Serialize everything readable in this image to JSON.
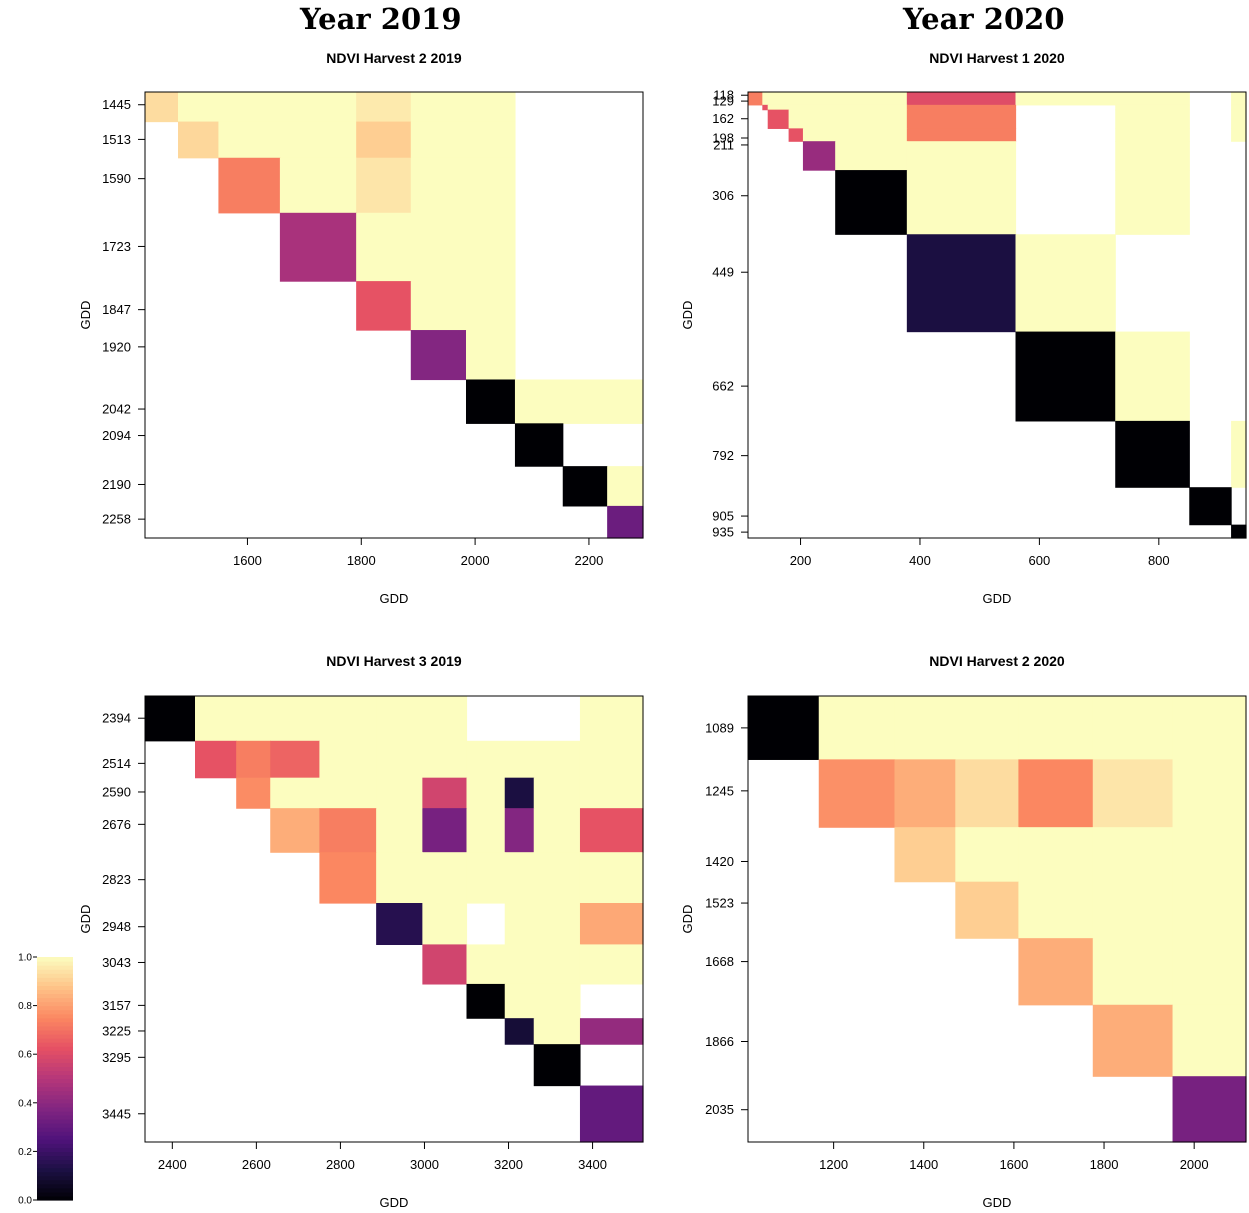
{
  "column_titles": [
    "Year 2019",
    "Year 2020"
  ],
  "colorbar": {
    "ticks": [
      "0.0",
      "0.2",
      "0.4",
      "0.6",
      "0.8",
      "1.0"
    ],
    "palette": [
      "#000004",
      "#1c1044",
      "#4f127b",
      "#812581",
      "#b5367a",
      "#e55064",
      "#fb8761",
      "#fec287",
      "#fcfdbf"
    ]
  },
  "chart_data": [
    {
      "type": "heatmap",
      "title": "NDVI Harvest 2 2019",
      "xlabel": "GDD",
      "ylabel": "GDD",
      "xlim": [
        1420,
        2295
      ],
      "ylim": [
        1420,
        2295
      ],
      "x_ticks": [
        "1600",
        "1800",
        "2000",
        "2200"
      ],
      "y_ticks": [
        "1445",
        "1513",
        "1590",
        "1723",
        "1847",
        "1920",
        "2042",
        "2094",
        "2190",
        "2258"
      ],
      "bounds": [
        1420,
        1478,
        1549,
        1657,
        1791,
        1887,
        1984,
        2070,
        2154,
        2232,
        2295
      ],
      "values": [
        [
          0.93,
          1.0,
          1.0,
          1.0,
          0.96,
          1.0,
          1.0,
          null,
          null,
          null
        ],
        [
          null,
          0.92,
          1.0,
          1.0,
          0.9,
          1.0,
          1.0,
          null,
          null,
          null
        ],
        [
          null,
          null,
          0.73,
          1.0,
          0.95,
          1.0,
          1.0,
          null,
          null,
          null
        ],
        [
          null,
          null,
          null,
          0.47,
          1.0,
          1.0,
          1.0,
          null,
          null,
          null
        ],
        [
          null,
          null,
          null,
          null,
          0.63,
          1.0,
          1.0,
          null,
          null,
          null
        ],
        [
          null,
          null,
          null,
          null,
          null,
          0.38,
          1.0,
          null,
          null,
          null
        ],
        [
          null,
          null,
          null,
          null,
          null,
          null,
          0.0,
          1.0,
          1.0,
          1.0
        ],
        [
          null,
          null,
          null,
          null,
          null,
          null,
          null,
          0.0,
          null,
          null
        ],
        [
          null,
          null,
          null,
          null,
          null,
          null,
          null,
          null,
          0.0,
          1.0
        ],
        [
          null,
          null,
          null,
          null,
          null,
          null,
          null,
          null,
          null,
          0.32
        ]
      ]
    },
    {
      "type": "heatmap",
      "title": "NDVI Harvest 1 2020",
      "xlabel": "GDD",
      "ylabel": "GDD",
      "xlim": [
        112,
        946
      ],
      "ylim": [
        112,
        946
      ],
      "x_ticks": [
        "200",
        "400",
        "600",
        "800"
      ],
      "y_ticks": [
        "118",
        "129",
        "162",
        "198",
        "211",
        "306",
        "449",
        "662",
        "792",
        "905",
        "935"
      ],
      "bounds": [
        112,
        136,
        145,
        180,
        204,
        258,
        378,
        560,
        727,
        851,
        921,
        946
      ],
      "values": [
        [
          0.73,
          1.0,
          1.0,
          1.0,
          1.0,
          1.0,
          0.61,
          1.0,
          1.0,
          null,
          1.0
        ],
        [
          null,
          0.63,
          1.0,
          1.0,
          1.0,
          1.0,
          0.73,
          null,
          1.0,
          null,
          1.0
        ],
        [
          null,
          null,
          0.63,
          1.0,
          1.0,
          1.0,
          0.73,
          null,
          1.0,
          null,
          1.0
        ],
        [
          null,
          null,
          null,
          0.63,
          1.0,
          1.0,
          0.73,
          null,
          1.0,
          null,
          1.0
        ],
        [
          null,
          null,
          null,
          null,
          0.43,
          1.0,
          1.0,
          null,
          1.0,
          null,
          null
        ],
        [
          null,
          null,
          null,
          null,
          null,
          0.0,
          1.0,
          null,
          1.0,
          null,
          null
        ],
        [
          null,
          null,
          null,
          null,
          null,
          null,
          0.12,
          1.0,
          null,
          null,
          null
        ],
        [
          null,
          null,
          null,
          null,
          null,
          null,
          null,
          0.0,
          1.0,
          null,
          null
        ],
        [
          null,
          null,
          null,
          null,
          null,
          null,
          null,
          null,
          0.0,
          null,
          1.0
        ],
        [
          null,
          null,
          null,
          null,
          null,
          null,
          null,
          null,
          null,
          0.0,
          null
        ],
        [
          null,
          null,
          null,
          null,
          null,
          null,
          null,
          null,
          null,
          null,
          0.0
        ]
      ]
    },
    {
      "type": "heatmap",
      "title": "NDVI Harvest 3 2019",
      "xlabel": "GDD",
      "ylabel": "GDD",
      "xlim": [
        2335,
        3520
      ],
      "ylim": [
        2335,
        3520
      ],
      "x_ticks": [
        "2400",
        "2600",
        "2800",
        "3000",
        "3200",
        "3400"
      ],
      "y_ticks": [
        "2394",
        "2514",
        "2590",
        "2676",
        "2823",
        "2948",
        "3043",
        "3157",
        "3225",
        "3295",
        "3445"
      ],
      "bounds": [
        2335,
        2454,
        2552,
        2633,
        2750,
        2885,
        2995,
        3100,
        3191,
        3260,
        3370,
        3520
      ],
      "values": [
        [
          0.0,
          1.0,
          1.0,
          1.0,
          1.0,
          1.0,
          1.0,
          null,
          null,
          null,
          1.0
        ],
        [
          null,
          0.63,
          0.73,
          0.67,
          1.0,
          1.0,
          1.0,
          1.0,
          1.0,
          1.0,
          1.0
        ],
        [
          null,
          null,
          0.76,
          1.0,
          1.0,
          1.0,
          0.57,
          1.0,
          0.12,
          1.0,
          1.0
        ],
        [
          null,
          null,
          null,
          0.83,
          0.73,
          1.0,
          0.35,
          1.0,
          0.38,
          1.0,
          0.63
        ],
        [
          null,
          null,
          null,
          null,
          0.75,
          1.0,
          1.0,
          1.0,
          1.0,
          1.0,
          1.0
        ],
        [
          null,
          null,
          null,
          null,
          null,
          0.15,
          1.0,
          null,
          1.0,
          1.0,
          0.82
        ],
        [
          null,
          null,
          null,
          null,
          null,
          null,
          0.57,
          1.0,
          1.0,
          1.0,
          1.0
        ],
        [
          null,
          null,
          null,
          null,
          null,
          null,
          null,
          0.0,
          1.0,
          1.0,
          null
        ],
        [
          null,
          null,
          null,
          null,
          null,
          null,
          null,
          null,
          0.1,
          1.0,
          0.42
        ],
        [
          null,
          null,
          null,
          null,
          null,
          null,
          null,
          null,
          null,
          0.0,
          null
        ],
        [
          null,
          null,
          null,
          null,
          null,
          null,
          null,
          null,
          null,
          null,
          0.3
        ]
      ]
    },
    {
      "type": "heatmap",
      "title": "NDVI Harvest 2 2020",
      "xlabel": "GDD",
      "ylabel": "GDD",
      "xlim": [
        1010,
        2115
      ],
      "ylim": [
        1010,
        2115
      ],
      "x_ticks": [
        "1200",
        "1400",
        "1600",
        "1800",
        "2000"
      ],
      "y_ticks": [
        "1089",
        "1245",
        "1420",
        "1523",
        "1668",
        "1866",
        "2035"
      ],
      "bounds": [
        1010,
        1167,
        1335,
        1470,
        1610,
        1775,
        1952,
        2115
      ],
      "values": [
        [
          0.0,
          1.0,
          1.0,
          1.0,
          1.0,
          1.0,
          1.0
        ],
        [
          null,
          0.77,
          0.83,
          0.93,
          0.75,
          0.95,
          1.0
        ],
        [
          null,
          null,
          0.9,
          1.0,
          1.0,
          1.0,
          1.0
        ],
        [
          null,
          null,
          null,
          0.9,
          1.0,
          1.0,
          1.0
        ],
        [
          null,
          null,
          null,
          null,
          0.83,
          1.0,
          1.0
        ],
        [
          null,
          null,
          null,
          null,
          null,
          0.83,
          1.0
        ],
        [
          null,
          null,
          null,
          null,
          null,
          null,
          0.35
        ]
      ]
    }
  ]
}
